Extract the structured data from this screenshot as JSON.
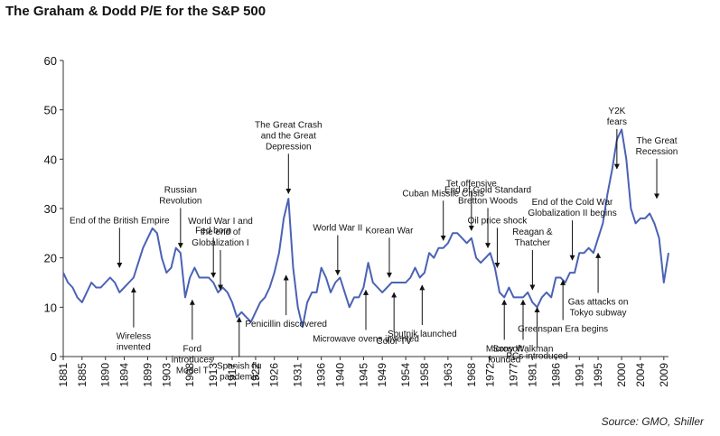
{
  "title": "The Graham & Dodd P/E for the S&P 500",
  "source": "Source: GMO, Shiller",
  "colors": {
    "series": "#4a62b5",
    "text": "#111111",
    "axis": "#333333"
  },
  "chart_data": {
    "type": "line",
    "title": "The Graham & Dodd P/E for the S&P 500",
    "xlabel": "",
    "ylabel": "",
    "xlim": [
      1881,
      2010
    ],
    "ylim": [
      0,
      60
    ],
    "y_ticks": [
      0,
      10,
      20,
      30,
      40,
      50,
      60
    ],
    "x_ticks": [
      "1881",
      "1885",
      "1890",
      "1894",
      "1899",
      "1903",
      "1908",
      "1913",
      "1917",
      "1922",
      "1926",
      "1931",
      "1936",
      "1940",
      "1945",
      "1949",
      "1954",
      "1958",
      "1963",
      "1968",
      "1972",
      "1977",
      "1981",
      "1986",
      "1991",
      "1995",
      "2000",
      "2004",
      "2009"
    ],
    "grid": false,
    "legend": "none",
    "series": [
      {
        "x": [
          1881,
          1882,
          1883,
          1884,
          1885,
          1886,
          1887,
          1888,
          1889,
          1890,
          1891,
          1892,
          1893,
          1894,
          1895,
          1896,
          1897,
          1898,
          1899,
          1900,
          1901,
          1902,
          1903,
          1904,
          1905,
          1906,
          1907,
          1908,
          1909,
          1910,
          1911,
          1912,
          1913,
          1914,
          1915,
          1916,
          1917,
          1918,
          1919,
          1920,
          1921,
          1922,
          1923,
          1924,
          1925,
          1926,
          1927,
          1928,
          1929,
          1930,
          1931,
          1932,
          1933,
          1934,
          1935,
          1936,
          1937,
          1938,
          1939,
          1940,
          1941,
          1942,
          1943,
          1944,
          1945,
          1946,
          1947,
          1948,
          1949,
          1950,
          1951,
          1952,
          1953,
          1954,
          1955,
          1956,
          1957,
          1958,
          1959,
          1960,
          1961,
          1962,
          1963,
          1964,
          1965,
          1966,
          1967,
          1968,
          1969,
          1970,
          1971,
          1972,
          1973,
          1974,
          1975,
          1976,
          1977,
          1978,
          1979,
          1980,
          1981,
          1982,
          1983,
          1984,
          1985,
          1986,
          1987,
          1988,
          1989,
          1990,
          1991,
          1992,
          1993,
          1994,
          1995,
          1996,
          1997,
          1998,
          1999,
          2000,
          2001,
          2002,
          2003,
          2004,
          2005,
          2006,
          2007,
          2008,
          2009,
          2010
        ],
        "values": [
          17,
          15,
          14,
          12,
          11,
          13,
          15,
          14,
          14,
          15,
          16,
          15,
          13,
          14,
          15,
          16,
          19,
          22,
          24,
          26,
          25,
          20,
          17,
          18,
          22,
          21,
          12,
          16,
          18,
          16,
          16,
          16,
          15,
          13,
          14,
          13,
          11,
          8,
          9,
          8,
          7,
          9,
          11,
          12,
          14,
          17,
          21,
          28,
          32,
          18,
          10,
          6,
          11,
          13,
          13,
          18,
          16,
          13,
          15,
          16,
          13,
          10,
          12,
          12,
          14,
          19,
          15,
          14,
          13,
          14,
          15,
          15,
          15,
          15,
          16,
          18,
          16,
          17,
          21,
          20,
          22,
          22,
          23,
          25,
          25,
          24,
          23,
          24,
          20,
          19,
          20,
          21,
          18,
          13,
          12,
          14,
          12,
          12,
          12,
          13,
          11,
          10,
          12,
          13,
          12,
          16,
          16,
          15,
          17,
          17,
          21,
          21,
          22,
          21,
          24,
          27,
          33,
          38,
          44,
          46,
          40,
          30,
          27,
          28,
          28,
          29,
          27,
          24,
          15,
          21
        ]
      }
    ],
    "annotations": [
      {
        "lines": [
          "End of the British Empire"
        ],
        "x": 1893,
        "y": 17.5,
        "dir": "down"
      },
      {
        "lines": [
          "Russian",
          "Revolution"
        ],
        "x": 1906,
        "y": 21.5,
        "dir": "down"
      },
      {
        "lines": [
          "Fed born"
        ],
        "x": 1913,
        "y": 15.5,
        "dir": "down"
      },
      {
        "lines": [
          "World War I and",
          "the end of",
          "Globalization I"
        ],
        "x": 1914.5,
        "y": 13,
        "dir": "down"
      },
      {
        "lines": [
          "The Great Crash",
          "and the Great",
          "Depression"
        ],
        "x": 1929,
        "y": 32.5,
        "dir": "down"
      },
      {
        "lines": [
          "World War II"
        ],
        "x": 1939.5,
        "y": 16,
        "dir": "down"
      },
      {
        "lines": [
          "Korean War"
        ],
        "x": 1950.5,
        "y": 15.5,
        "dir": "down"
      },
      {
        "lines": [
          "Cuban Missile Crisis"
        ],
        "x": 1962,
        "y": 23,
        "dir": "down"
      },
      {
        "lines": [
          "Tet offensive"
        ],
        "x": 1968,
        "y": 25,
        "dir": "down"
      },
      {
        "lines": [
          "End of Gold Standard",
          "Bretton Woods"
        ],
        "x": 1971.5,
        "y": 21.5,
        "dir": "down"
      },
      {
        "lines": [
          "Oil price shock"
        ],
        "x": 1973.5,
        "y": 17.5,
        "dir": "down"
      },
      {
        "lines": [
          "Reagan &",
          "Thatcher"
        ],
        "x": 1981,
        "y": 13,
        "dir": "down"
      },
      {
        "lines": [
          "End of the Cold War",
          "Globalization II begins"
        ],
        "x": 1989.5,
        "y": 19,
        "dir": "down"
      },
      {
        "lines": [
          "Y2K",
          "fears"
        ],
        "x": 1999,
        "y": 37.5,
        "dir": "down"
      },
      {
        "lines": [
          "The Great",
          "Recession"
        ],
        "x": 2007.5,
        "y": 31.5,
        "dir": "down"
      },
      {
        "lines": [
          "Wireless",
          "invented"
        ],
        "x": 1896,
        "y": 14.5,
        "dir": "up"
      },
      {
        "lines": [
          "Ford",
          "introduces",
          "Model T"
        ],
        "x": 1908.5,
        "y": 12,
        "dir": "up"
      },
      {
        "lines": [
          "Spanish flu",
          "pandemic"
        ],
        "x": 1918.5,
        "y": 8.5,
        "dir": "up"
      },
      {
        "lines": [
          "Penicillin discovered"
        ],
        "x": 1928.5,
        "y": 17,
        "dir": "up"
      },
      {
        "lines": [
          "Microwave ovens invented"
        ],
        "x": 1945.5,
        "y": 14,
        "dir": "up"
      },
      {
        "lines": [
          "Color TV"
        ],
        "x": 1951.5,
        "y": 13.5,
        "dir": "up"
      },
      {
        "lines": [
          "Sputnik launched"
        ],
        "x": 1957.5,
        "y": 15,
        "dir": "up"
      },
      {
        "lines": [
          "Microsoft",
          "founded"
        ],
        "x": 1975,
        "y": 12,
        "dir": "up"
      },
      {
        "lines": [
          "Sony Walkman"
        ],
        "x": 1979,
        "y": 12,
        "dir": "up"
      },
      {
        "lines": [
          "PCs introduced"
        ],
        "x": 1982,
        "y": 10.5,
        "dir": "up"
      },
      {
        "lines": [
          "Greenspan Era begins"
        ],
        "x": 1987.5,
        "y": 16,
        "dir": "up"
      },
      {
        "lines": [
          "Gas attacks on",
          "Tokyo subway"
        ],
        "x": 1995,
        "y": 21.5,
        "dir": "up"
      }
    ]
  }
}
